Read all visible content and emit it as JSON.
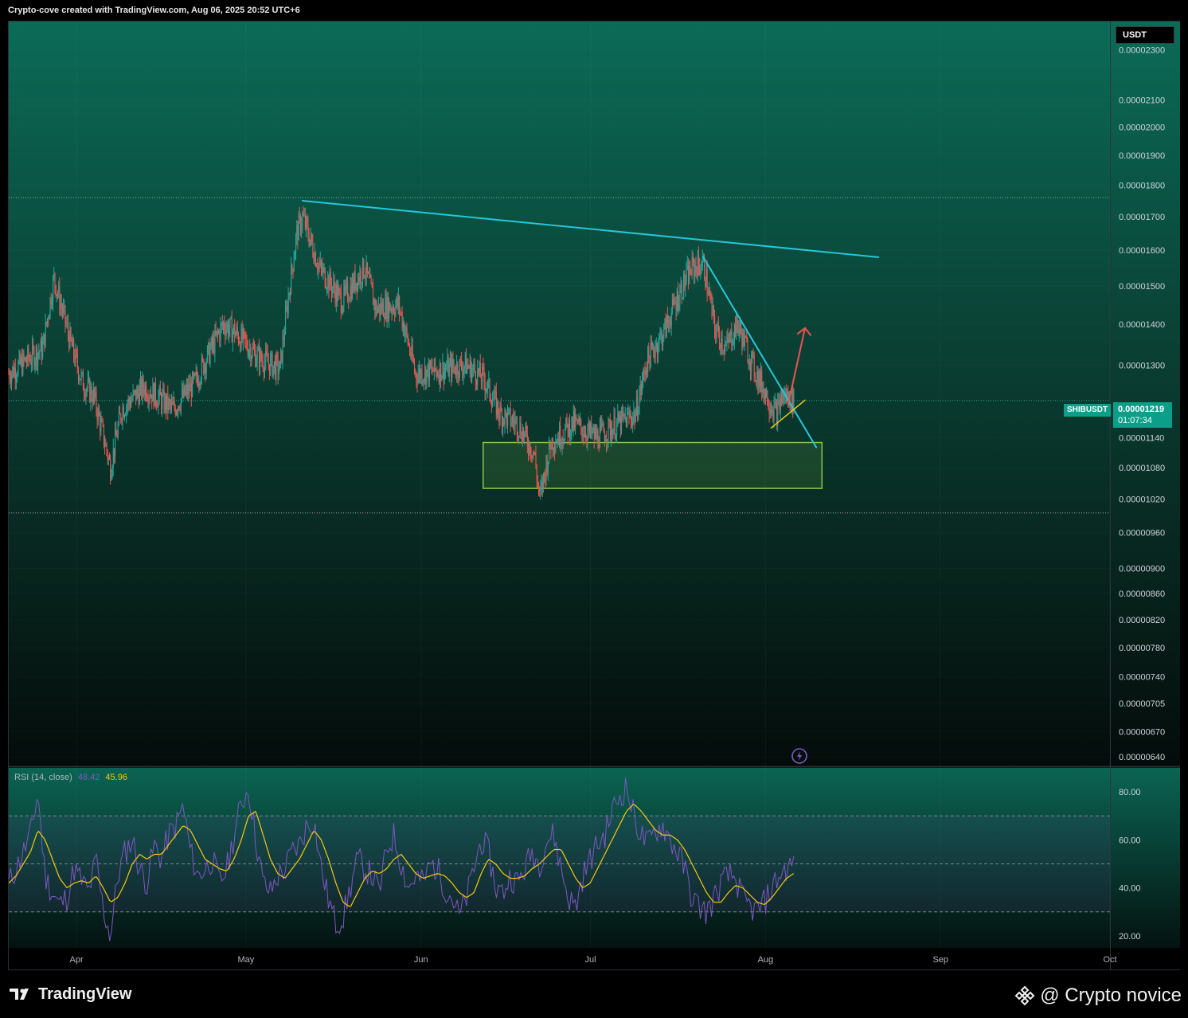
{
  "header": {
    "credit": "Crypto-cove created with TradingView.com, Aug 06, 2025 20:52 UTC+6"
  },
  "price_scale": {
    "currency": "USDT",
    "symbol": "SHIBUSDT",
    "last_price": "0.00001219",
    "countdown": "01:07:34",
    "tag_color": "#0b9f8a"
  },
  "rsi": {
    "label": "RSI (14, close)",
    "value": "48.42",
    "ma_value": "45.96",
    "rsi_color": "#7e57c2",
    "ma_color": "#f6c90e"
  },
  "footer": {
    "logo_text": "TradingView",
    "brand_text": "@ Crypto novice",
    "brand_icon": "binance-diamond-icon"
  },
  "colors": {
    "up": "#26a69a",
    "down": "#ef5350",
    "trendline": "#26c6da",
    "zone": "#8bc34a",
    "arrow": "#ef5350",
    "support": "#f6c90e"
  },
  "chart_data": [
    {
      "type": "candlestick",
      "symbol": "SHIBUSDT",
      "scale": "log",
      "x_ticks": [
        "Apr",
        "May",
        "Jun",
        "Jul",
        "Aug",
        "Sep",
        "Oct"
      ],
      "y_ticks": [
        "0.00002300",
        "0.00002100",
        "0.00002000",
        "0.00001900",
        "0.00001800",
        "0.00001700",
        "0.00001600",
        "0.00001500",
        "0.00001400",
        "0.00001300",
        "0.00001140",
        "0.00001080",
        "0.00001020",
        "0.00000960",
        "0.00000900",
        "0.00000860",
        "0.00000820",
        "0.00000780",
        "0.00000740",
        "0.00000705",
        "0.00000670",
        "0.00000640"
      ],
      "ylim": [
        6.3e-06,
        2.42e-05
      ],
      "price_path": [
        {
          "date": "2025-03-20",
          "price": 1.28e-05
        },
        {
          "date": "2025-03-26",
          "price": 1.34e-05
        },
        {
          "date": "2025-03-28",
          "price": 1.52e-05
        },
        {
          "date": "2025-03-31",
          "price": 1.35e-05
        },
        {
          "date": "2025-04-02",
          "price": 1.26e-05
        },
        {
          "date": "2025-04-04",
          "price": 1.23e-05
        },
        {
          "date": "2025-04-07",
          "price": 1.08e-05
        },
        {
          "date": "2025-04-09",
          "price": 1.2e-05
        },
        {
          "date": "2025-04-13",
          "price": 1.25e-05
        },
        {
          "date": "2025-04-18",
          "price": 1.2e-05
        },
        {
          "date": "2025-04-22",
          "price": 1.26e-05
        },
        {
          "date": "2025-04-27",
          "price": 1.4e-05
        },
        {
          "date": "2025-04-29",
          "price": 1.38e-05
        },
        {
          "date": "2025-05-03",
          "price": 1.32e-05
        },
        {
          "date": "2025-05-07",
          "price": 1.29e-05
        },
        {
          "date": "2025-05-10",
          "price": 1.65e-05
        },
        {
          "date": "2025-05-11",
          "price": 1.7e-05
        },
        {
          "date": "2025-05-14",
          "price": 1.55e-05
        },
        {
          "date": "2025-05-18",
          "price": 1.46e-05
        },
        {
          "date": "2025-05-22",
          "price": 1.55e-05
        },
        {
          "date": "2025-05-24",
          "price": 1.44e-05
        },
        {
          "date": "2025-05-28",
          "price": 1.45e-05
        },
        {
          "date": "2025-05-31",
          "price": 1.28e-05
        },
        {
          "date": "2025-06-05",
          "price": 1.29e-05
        },
        {
          "date": "2025-06-09",
          "price": 1.3e-05
        },
        {
          "date": "2025-06-12",
          "price": 1.27e-05
        },
        {
          "date": "2025-06-15",
          "price": 1.19e-05
        },
        {
          "date": "2025-06-18",
          "price": 1.17e-05
        },
        {
          "date": "2025-06-21",
          "price": 1.11e-05
        },
        {
          "date": "2025-06-22",
          "price": 1.02e-05
        },
        {
          "date": "2025-06-24",
          "price": 1.13e-05
        },
        {
          "date": "2025-06-28",
          "price": 1.17e-05
        },
        {
          "date": "2025-07-02",
          "price": 1.14e-05
        },
        {
          "date": "2025-07-06",
          "price": 1.17e-05
        },
        {
          "date": "2025-07-09",
          "price": 1.19e-05
        },
        {
          "date": "2025-07-11",
          "price": 1.31e-05
        },
        {
          "date": "2025-07-14",
          "price": 1.38e-05
        },
        {
          "date": "2025-07-17",
          "price": 1.49e-05
        },
        {
          "date": "2025-07-19",
          "price": 1.55e-05
        },
        {
          "date": "2025-07-21",
          "price": 1.56e-05
        },
        {
          "date": "2025-07-23",
          "price": 1.39e-05
        },
        {
          "date": "2025-07-25",
          "price": 1.34e-05
        },
        {
          "date": "2025-07-27",
          "price": 1.4e-05
        },
        {
          "date": "2025-07-30",
          "price": 1.29e-05
        },
        {
          "date": "2025-08-02",
          "price": 1.21e-05
        },
        {
          "date": "2025-08-03",
          "price": 1.19e-05
        },
        {
          "date": "2025-08-04",
          "price": 1.23e-05
        },
        {
          "date": "2025-08-06",
          "price": 1.22e-05
        }
      ],
      "drawings": {
        "resistance_line": {
          "from": {
            "date": "2025-05-11",
            "price": 1.75e-05
          },
          "to": {
            "date": "2025-08-21",
            "price": 1.58e-05
          }
        },
        "descending_line": {
          "from": {
            "date": "2025-07-21",
            "price": 1.58e-05
          },
          "to": {
            "date": "2025-08-10",
            "price": 1.12e-05
          }
        },
        "support_line": {
          "from": {
            "date": "2025-08-02",
            "price": 1.16e-05
          },
          "to": {
            "date": "2025-08-08",
            "price": 1.22e-05
          }
        },
        "projection_arrow": {
          "from": {
            "date": "2025-08-05",
            "price": 1.21e-05
          },
          "to": {
            "date": "2025-08-08",
            "price": 1.39e-05
          }
        },
        "demand_zone": {
          "date_from": "2025-06-12",
          "date_to": "2025-08-11",
          "price_low": 1.04e-05,
          "price_high": 1.13e-05
        }
      }
    },
    {
      "type": "line",
      "title": "RSI (14, close)",
      "y_ticks": [
        "80.00",
        "60.00",
        "40.00",
        "20.00"
      ],
      "ylim": [
        15,
        90
      ],
      "bands": [
        30,
        50,
        70
      ],
      "series": [
        {
          "name": "RSI",
          "values": [
            42,
            48,
            55,
            62,
            80,
            45,
            38,
            33,
            36,
            48,
            43,
            38,
            52,
            31,
            20,
            45,
            55,
            60,
            48,
            42,
            58,
            52,
            62,
            66,
            74,
            55,
            45,
            48,
            52,
            42,
            48,
            62,
            75,
            82,
            60,
            42,
            38,
            45,
            48,
            55,
            58,
            66,
            68,
            48,
            35,
            25,
            28,
            40,
            52,
            48,
            45,
            38,
            56,
            62,
            50,
            40,
            45,
            42,
            50,
            48,
            40,
            36,
            28,
            36,
            48,
            60,
            55,
            40,
            38,
            45,
            42,
            48,
            55,
            50,
            60,
            62,
            48,
            36,
            32,
            45,
            52,
            58,
            62,
            72,
            78,
            82,
            70,
            62,
            58,
            64,
            66,
            60,
            55,
            48,
            36,
            32,
            30,
            35,
            42,
            45,
            44,
            35,
            32,
            30,
            34,
            40,
            45,
            48,
            50
          ]
        },
        {
          "name": "RSI-based MA",
          "values": [
            42,
            45,
            50,
            55,
            64,
            60,
            52,
            44,
            40,
            42,
            43,
            42,
            45,
            40,
            34,
            36,
            42,
            50,
            54,
            52,
            54,
            54,
            58,
            62,
            66,
            64,
            58,
            52,
            50,
            48,
            47,
            52,
            60,
            70,
            72,
            62,
            52,
            46,
            44,
            48,
            52,
            58,
            64,
            60,
            52,
            42,
            34,
            32,
            38,
            44,
            47,
            46,
            48,
            52,
            54,
            50,
            46,
            44,
            45,
            46,
            45,
            42,
            38,
            36,
            38,
            46,
            52,
            50,
            46,
            44,
            44,
            45,
            48,
            50,
            53,
            56,
            56,
            50,
            44,
            40,
            42,
            48,
            54,
            60,
            66,
            72,
            75,
            72,
            68,
            64,
            62,
            62,
            60,
            56,
            50,
            44,
            38,
            34,
            34,
            38,
            41,
            40,
            37,
            34,
            33,
            36,
            40,
            44,
            46
          ]
        }
      ]
    }
  ]
}
